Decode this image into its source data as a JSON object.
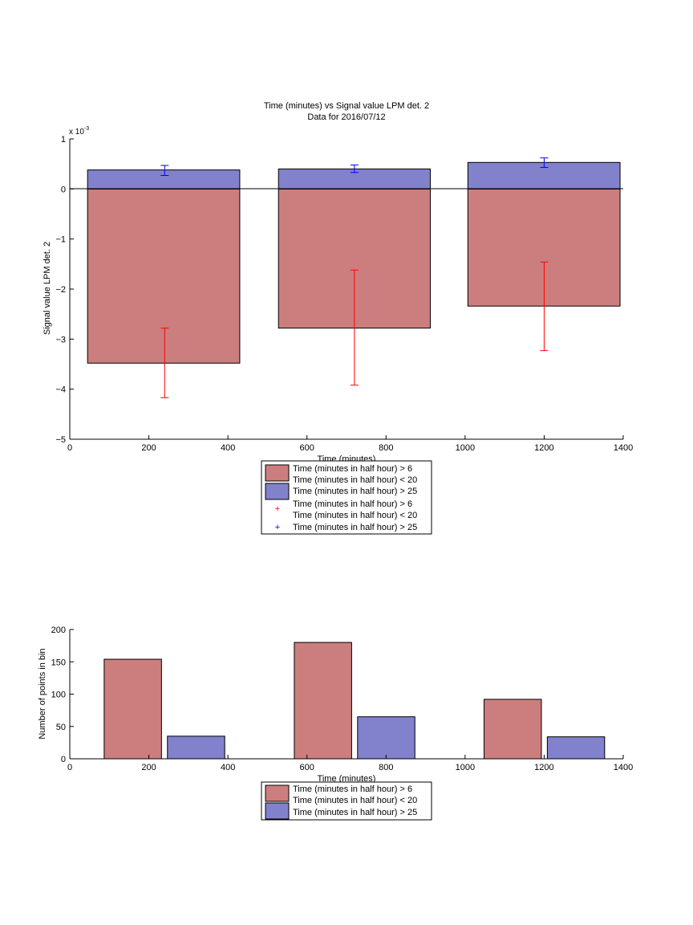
{
  "chart_data": [
    {
      "type": "bar",
      "title": "Time (minutes) vs Signal value LPM det. 2",
      "subtitle": "Data for 2016/07/12",
      "xlabel": "Time (minutes)",
      "ylabel": "Signal value LPM det. 2",
      "exponent_label": "x 10",
      "exponent_power": "-3",
      "xlim": [
        0,
        1400
      ],
      "ylim": [
        -5,
        1
      ],
      "xticks": [
        "0",
        "200",
        "400",
        "600",
        "800",
        "1000",
        "1200",
        "1400"
      ],
      "yticks": [
        "1",
        "0",
        "−1",
        "−2",
        "−3",
        "−4",
        "−5"
      ],
      "bar_edges": [
        [
          45,
          430
        ],
        [
          528,
          912
        ],
        [
          1007,
          1392
        ]
      ],
      "series": [
        {
          "legend_label": "Time (minutes in half hour) > 6",
          "legend_label_line2": "Time (minutes in half hour) < 20",
          "color": "#cc7e7e",
          "values": [
            -3.48,
            -2.78,
            -2.34
          ],
          "errorbars": [
            {
              "x": 240,
              "low": -4.17,
              "high": -2.78
            },
            {
              "x": 720,
              "low": -3.92,
              "high": -1.62
            },
            {
              "x": 1200,
              "low": -3.23,
              "high": -1.46
            }
          ],
          "errorbar_color": "#ff0000"
        },
        {
          "legend_label": "Time (minutes in half hour) > 25",
          "color": "#8181cc",
          "values": [
            0.38,
            0.4,
            0.53
          ],
          "errorbars": [
            {
              "x": 240,
              "low": 0.27,
              "high": 0.47
            },
            {
              "x": 720,
              "low": 0.33,
              "high": 0.48
            },
            {
              "x": 1200,
              "low": 0.43,
              "high": 0.62
            }
          ],
          "errorbar_color": "#0000ff"
        }
      ],
      "legend_marker_symbol": "+",
      "legend_placement": "below-axes",
      "grid": false
    },
    {
      "type": "bar",
      "xlabel": "Time (minutes)",
      "ylabel": "Number of points in bin",
      "xlim": [
        0,
        1400
      ],
      "ylim": [
        0,
        200
      ],
      "xticks": [
        "0",
        "200",
        "400",
        "600",
        "800",
        "1000",
        "1200",
        "1400"
      ],
      "yticks": [
        "200",
        "150",
        "100",
        "50",
        "0"
      ],
      "series": [
        {
          "legend_label": "Time (minutes in half hour) > 6",
          "legend_label_line2": "Time (minutes in half hour) < 20",
          "color": "#cc7e7e",
          "bars": [
            {
              "x0": 87,
              "x1": 232,
              "value": 154
            },
            {
              "x0": 568,
              "x1": 713,
              "value": 180
            },
            {
              "x0": 1048,
              "x1": 1193,
              "value": 92
            }
          ]
        },
        {
          "legend_label": "Time (minutes in half hour) > 25",
          "color": "#8181cc",
          "bars": [
            {
              "x0": 247,
              "x1": 392,
              "value": 35
            },
            {
              "x0": 728,
              "x1": 873,
              "value": 65
            },
            {
              "x0": 1208,
              "x1": 1353,
              "value": 34
            }
          ]
        }
      ],
      "legend_placement": "below-axes",
      "grid": false
    }
  ]
}
